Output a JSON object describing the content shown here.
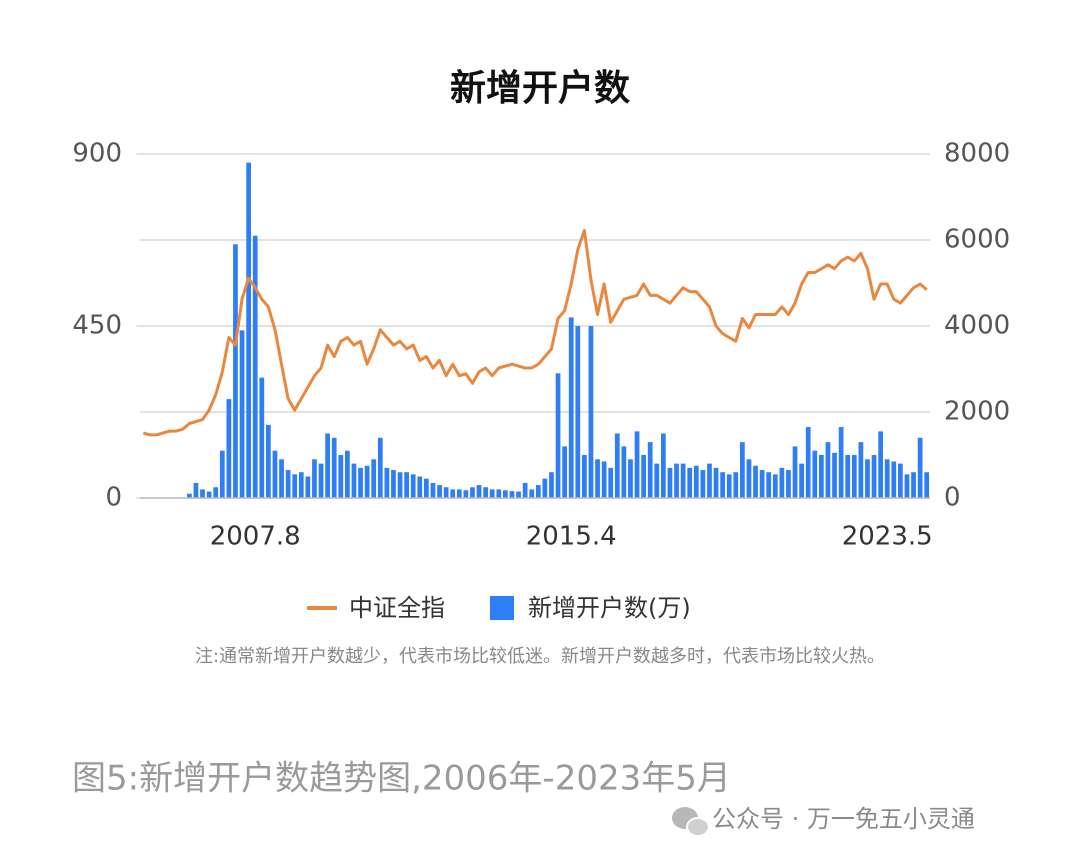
{
  "chart_data": {
    "type": "bar-line",
    "title": "新增开户数",
    "categories": [
      null,
      null,
      null,
      null,
      null,
      null,
      null,
      null,
      null,
      null,
      null,
      null,
      null,
      null,
      null,
      null,
      null,
      "2007.8",
      null,
      null,
      null,
      null,
      null,
      null,
      null,
      null,
      null,
      null,
      null,
      null,
      null,
      null,
      null,
      null,
      null,
      null,
      null,
      null,
      null,
      null,
      null,
      null,
      null,
      null,
      null,
      null,
      null,
      null,
      null,
      null,
      null,
      null,
      null,
      null,
      null,
      null,
      null,
      null,
      null,
      null,
      null,
      null,
      null,
      null,
      null,
      "2015.4",
      null,
      null,
      null,
      null,
      null,
      null,
      null,
      null,
      null,
      null,
      null,
      null,
      null,
      null,
      null,
      null,
      null,
      null,
      null,
      null,
      null,
      null,
      null,
      null,
      null,
      null,
      null,
      null,
      null,
      null,
      null,
      null,
      null,
      null,
      null,
      null,
      null,
      null,
      null,
      null,
      null,
      null,
      null,
      null,
      null,
      null,
      null,
      "2023.5",
      null,
      null,
      null,
      null,
      null,
      null
    ],
    "series": [
      {
        "name": "中证全指",
        "kind": "line",
        "axis": "y",
        "color": "#e8883f",
        "values": [
          170,
          165,
          165,
          170,
          175,
          175,
          180,
          195,
          200,
          205,
          230,
          270,
          330,
          420,
          400,
          520,
          575,
          550,
          520,
          500,
          440,
          350,
          260,
          230,
          260,
          290,
          320,
          340,
          400,
          370,
          410,
          420,
          400,
          410,
          350,
          390,
          440,
          420,
          400,
          410,
          390,
          400,
          360,
          370,
          340,
          360,
          320,
          350,
          320,
          325,
          300,
          330,
          340,
          320,
          340,
          345,
          350,
          345,
          340,
          340,
          350,
          370,
          390,
          470,
          490,
          560,
          650,
          700,
          570,
          480,
          560,
          460,
          490,
          520,
          525,
          530,
          560,
          530,
          530,
          520,
          510,
          530,
          550,
          540,
          540,
          520,
          500,
          450,
          430,
          420,
          410,
          470,
          445,
          480,
          480,
          480,
          480,
          500,
          480,
          510,
          560,
          590,
          590,
          600,
          610,
          600,
          620,
          630,
          620,
          640,
          600,
          520,
          560,
          560,
          520,
          510,
          530,
          550,
          560,
          545
        ]
      },
      {
        "name": "新增开户数(万)",
        "kind": "bar",
        "axis": "y2",
        "color": "#2f7ef5",
        "values": [
          null,
          null,
          null,
          null,
          null,
          null,
          null,
          100,
          350,
          200,
          150,
          250,
          1100,
          2300,
          5900,
          3900,
          7800,
          6100,
          2800,
          1700,
          1100,
          900,
          650,
          550,
          600,
          500,
          900,
          800,
          1500,
          1400,
          1000,
          1100,
          800,
          700,
          750,
          900,
          1400,
          700,
          650,
          600,
          600,
          550,
          500,
          450,
          350,
          300,
          250,
          200,
          200,
          180,
          250,
          300,
          250,
          200,
          200,
          180,
          160,
          150,
          350,
          200,
          300,
          450,
          600,
          2900,
          1200,
          4200,
          4000,
          1000,
          4000,
          900,
          850,
          700,
          1500,
          1200,
          900,
          1550,
          1000,
          1300,
          800,
          1500,
          700,
          800,
          800,
          700,
          750,
          650,
          800,
          700,
          600,
          550,
          600,
          1300,
          900,
          750,
          650,
          600,
          550,
          700,
          650,
          1200,
          800,
          1650,
          1100,
          1000,
          1300,
          1050,
          1650,
          1000,
          1000,
          1300,
          900,
          1000,
          1550,
          900,
          850,
          800,
          550,
          600,
          1400,
          600
        ]
      }
    ],
    "ylim": [
      0,
      900
    ],
    "yticks": [
      0,
      450,
      900
    ],
    "y2lim": [
      0,
      8000
    ],
    "y2ticks": [
      0,
      2000,
      4000,
      6000,
      8000
    ],
    "grid": true,
    "legend": "bottom",
    "note": "注:通常新增开户数越少，代表市场比较低迷。新增开户数越多时，代表市场比较火热。"
  },
  "caption": "图5:新增开户数趋势图,2006年-2023年5月",
  "watermark": "公众号 · 万一免五小灵通"
}
